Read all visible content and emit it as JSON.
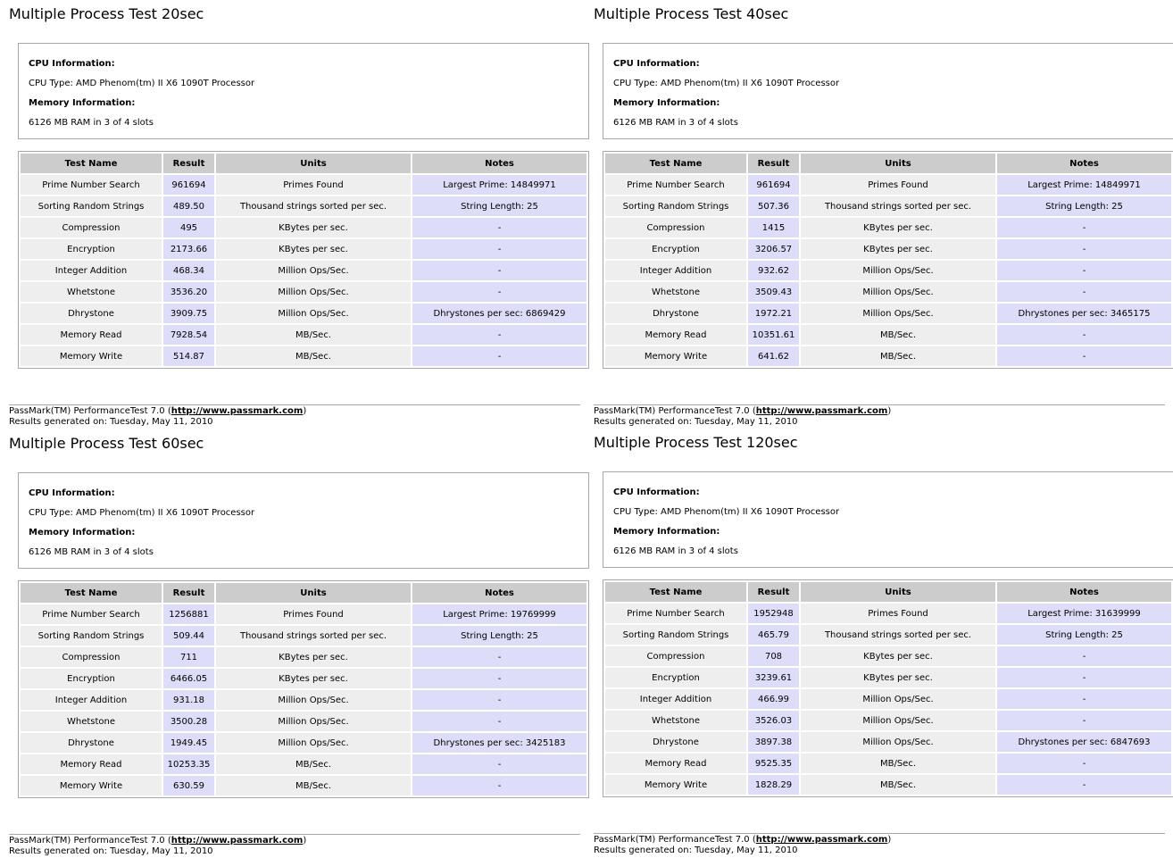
{
  "common": {
    "cpu_info_label": "CPU Information:",
    "cpu_type": "CPU Type: AMD Phenom(tm) II X6 1090T Processor",
    "mem_info_label": "Memory Information:",
    "memory": "6126 MB RAM in 3 of 4 slots",
    "headers": {
      "test": "Test Name",
      "result": "Result",
      "units": "Units",
      "notes": "Notes"
    },
    "footer_prefix": "PassMark(TM) PerformanceTest 7.0 (",
    "footer_link": "http://www.passmark.com",
    "footer_suffix": ")",
    "footer_date": "Results generated on: Tuesday, May 11, 2010"
  },
  "panels": [
    {
      "title": "Multiple Process Test 20sec",
      "rows": [
        {
          "test": "Prime Number Search",
          "result": "961694",
          "units": "Primes Found",
          "notes": "Largest Prime: 14849971"
        },
        {
          "test": "Sorting Random Strings",
          "result": "489.50",
          "units": "Thousand strings sorted per sec.",
          "notes": "String Length: 25"
        },
        {
          "test": "Compression",
          "result": "495",
          "units": "KBytes per sec.",
          "notes": "-"
        },
        {
          "test": "Encryption",
          "result": "2173.66",
          "units": "KBytes per sec.",
          "notes": "-"
        },
        {
          "test": "Integer Addition",
          "result": "468.34",
          "units": "Million Ops/Sec.",
          "notes": "-"
        },
        {
          "test": "Whetstone",
          "result": "3536.20",
          "units": "Million Ops/Sec.",
          "notes": "-"
        },
        {
          "test": "Dhrystone",
          "result": "3909.75",
          "units": "Million Ops/Sec.",
          "notes": "Dhrystones per sec: 6869429"
        },
        {
          "test": "Memory Read",
          "result": "7928.54",
          "units": "MB/Sec.",
          "notes": "-"
        },
        {
          "test": "Memory Write",
          "result": "514.87",
          "units": "MB/Sec.",
          "notes": "-"
        }
      ]
    },
    {
      "title": "Multiple Process Test 40sec",
      "rows": [
        {
          "test": "Prime Number Search",
          "result": "961694",
          "units": "Primes Found",
          "notes": "Largest Prime: 14849971"
        },
        {
          "test": "Sorting Random Strings",
          "result": "507.36",
          "units": "Thousand strings sorted per sec.",
          "notes": "String Length: 25"
        },
        {
          "test": "Compression",
          "result": "1415",
          "units": "KBytes per sec.",
          "notes": "-"
        },
        {
          "test": "Encryption",
          "result": "3206.57",
          "units": "KBytes per sec.",
          "notes": "-"
        },
        {
          "test": "Integer Addition",
          "result": "932.62",
          "units": "Million Ops/Sec.",
          "notes": "-"
        },
        {
          "test": "Whetstone",
          "result": "3509.43",
          "units": "Million Ops/Sec.",
          "notes": "-"
        },
        {
          "test": "Dhrystone",
          "result": "1972.21",
          "units": "Million Ops/Sec.",
          "notes": "Dhrystones per sec: 3465175"
        },
        {
          "test": "Memory Read",
          "result": "10351.61",
          "units": "MB/Sec.",
          "notes": "-"
        },
        {
          "test": "Memory Write",
          "result": "641.62",
          "units": "MB/Sec.",
          "notes": "-"
        }
      ]
    },
    {
      "title": "Multiple Process Test 60sec",
      "rows": [
        {
          "test": "Prime Number Search",
          "result": "1256881",
          "units": "Primes Found",
          "notes": "Largest Prime: 19769999"
        },
        {
          "test": "Sorting Random Strings",
          "result": "509.44",
          "units": "Thousand strings sorted per sec.",
          "notes": "String Length: 25"
        },
        {
          "test": "Compression",
          "result": "711",
          "units": "KBytes per sec.",
          "notes": "-"
        },
        {
          "test": "Encryption",
          "result": "6466.05",
          "units": "KBytes per sec.",
          "notes": "-"
        },
        {
          "test": "Integer Addition",
          "result": "931.18",
          "units": "Million Ops/Sec.",
          "notes": "-"
        },
        {
          "test": "Whetstone",
          "result": "3500.28",
          "units": "Million Ops/Sec.",
          "notes": "-"
        },
        {
          "test": "Dhrystone",
          "result": "1949.45",
          "units": "Million Ops/Sec.",
          "notes": "Dhrystones per sec: 3425183"
        },
        {
          "test": "Memory Read",
          "result": "10253.35",
          "units": "MB/Sec.",
          "notes": "-"
        },
        {
          "test": "Memory Write",
          "result": "630.59",
          "units": "MB/Sec.",
          "notes": "-"
        }
      ]
    },
    {
      "title": "Multiple Process Test 120sec",
      "rows": [
        {
          "test": "Prime Number Search",
          "result": "1952948",
          "units": "Primes Found",
          "notes": "Largest Prime: 31639999"
        },
        {
          "test": "Sorting Random Strings",
          "result": "465.79",
          "units": "Thousand strings sorted per sec.",
          "notes": "String Length: 25"
        },
        {
          "test": "Compression",
          "result": "708",
          "units": "KBytes per sec.",
          "notes": "-"
        },
        {
          "test": "Encryption",
          "result": "3239.61",
          "units": "KBytes per sec.",
          "notes": "-"
        },
        {
          "test": "Integer Addition",
          "result": "466.99",
          "units": "Million Ops/Sec.",
          "notes": "-"
        },
        {
          "test": "Whetstone",
          "result": "3526.03",
          "units": "Million Ops/Sec.",
          "notes": "-"
        },
        {
          "test": "Dhrystone",
          "result": "3897.38",
          "units": "Million Ops/Sec.",
          "notes": "Dhrystones per sec: 6847693"
        },
        {
          "test": "Memory Read",
          "result": "9525.35",
          "units": "MB/Sec.",
          "notes": "-"
        },
        {
          "test": "Memory Write",
          "result": "1828.29",
          "units": "MB/Sec.",
          "notes": "-"
        }
      ]
    }
  ]
}
